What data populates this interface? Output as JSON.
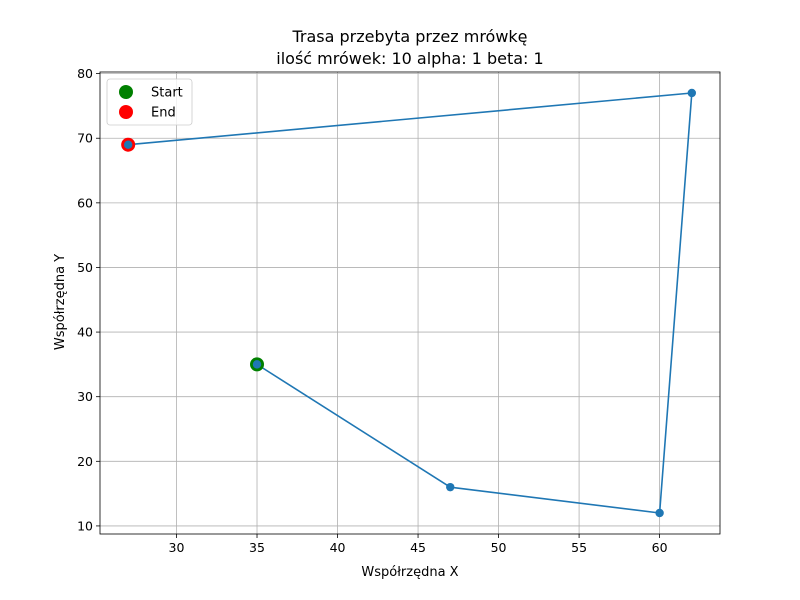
{
  "chart_data": {
    "type": "line",
    "title_line1": "Trasa przebyta przez mrówkę",
    "title_line2": "ilość mrówek: 10 alpha: 1 beta: 1",
    "xlabel": "Współrzędna X",
    "ylabel": "Współrzędna Y",
    "xlim": [
      25.25,
      63.75
    ],
    "ylim": [
      8.75,
      80.25
    ],
    "xticks": [
      30,
      35,
      40,
      45,
      50,
      55,
      60
    ],
    "yticks": [
      10,
      20,
      30,
      40,
      50,
      60,
      70,
      80
    ],
    "grid": true,
    "legend_position": "upper-left",
    "route": {
      "x": [
        35,
        47,
        60,
        62,
        27
      ],
      "y": [
        35,
        16,
        12,
        77,
        69
      ],
      "color": "#1f77b4"
    },
    "start": {
      "label": "Start",
      "x": 35,
      "y": 35,
      "color": "#008000"
    },
    "end": {
      "label": "End",
      "x": 27,
      "y": 69,
      "color": "#ff0000"
    }
  }
}
